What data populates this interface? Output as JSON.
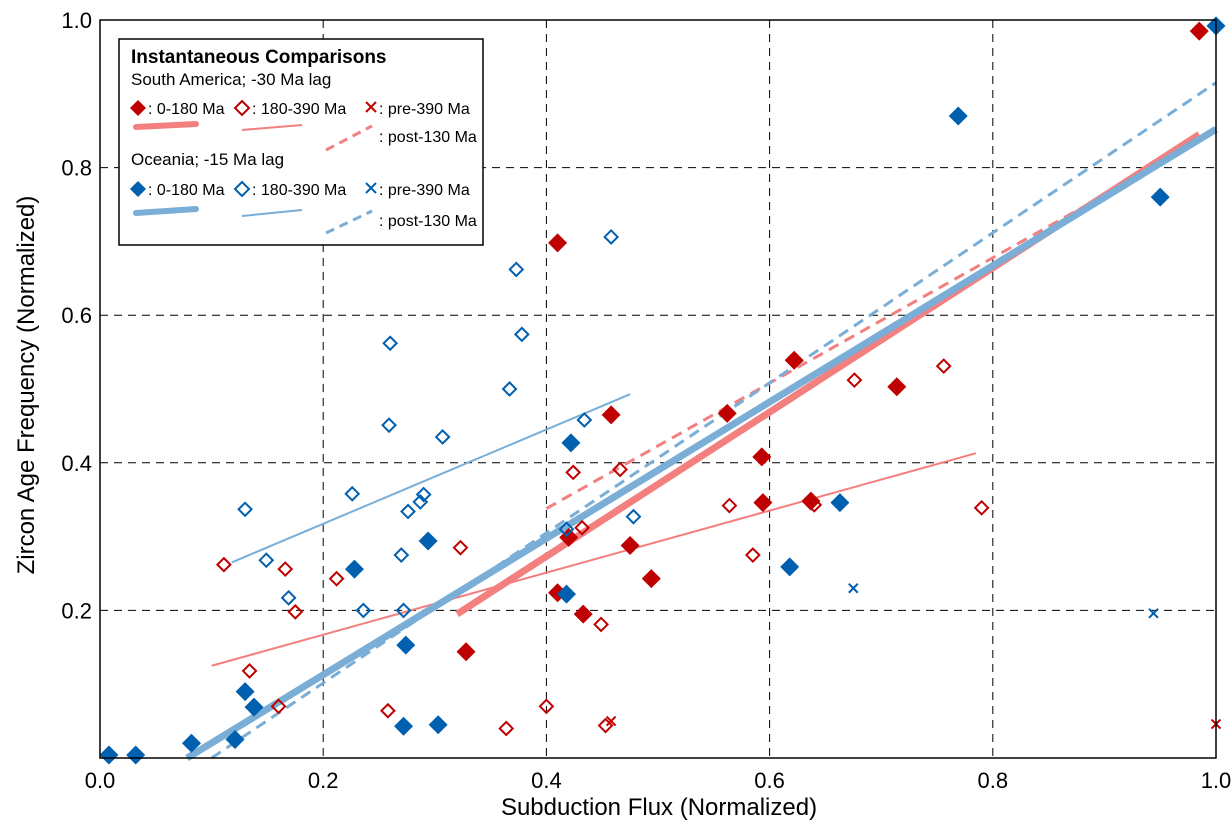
{
  "chart_data": {
    "type": "scatter",
    "xlabel": "Subduction Flux (Normalized)",
    "ylabel": "Zircon Age Frequency (Normalized)",
    "xlim": [
      0,
      1
    ],
    "ylim": [
      0,
      1
    ],
    "x_ticks": [
      "0.0",
      "0.2",
      "0.4",
      "0.6",
      "0.8",
      "1.0"
    ],
    "y_ticks": [
      "0.2",
      "0.4",
      "0.6",
      "0.8",
      "1.0"
    ],
    "grid": true,
    "legend_placement": "top-left",
    "colors": {
      "sa_marker": "#c00000",
      "sa_line": "#f47f7f",
      "oc_marker": "#0060b0",
      "oc_line": "#7aaed6"
    },
    "legend": {
      "title": "Instantaneous Comparisons",
      "groups": [
        {
          "name": "South America; -30 Ma lag",
          "entries": [
            ": 0-180 Ma",
            ": 180-390 Ma",
            ": pre-390 Ma",
            ": post-130 Ma"
          ]
        },
        {
          "name": "Oceania; -15 Ma lag",
          "entries": [
            ": 0-180 Ma",
            ": 180-390 Ma",
            ": pre-390 Ma",
            ": post-130 Ma"
          ]
        }
      ]
    },
    "series": [
      {
        "group": "South America",
        "label": "0-180 Ma",
        "marker": "filled-diamond",
        "x": [
          0.985,
          0.41,
          0.458,
          0.562,
          0.593,
          0.594,
          0.622,
          0.637,
          0.714,
          0.42,
          0.475,
          0.494,
          0.41,
          0.433,
          0.328
        ],
        "y": [
          0.985,
          0.698,
          0.465,
          0.467,
          0.408,
          0.346,
          0.539,
          0.348,
          0.503,
          0.299,
          0.288,
          0.243,
          0.224,
          0.195,
          0.144
        ]
      },
      {
        "group": "South America",
        "label": "180-390 Ma",
        "marker": "open-diamond",
        "x": [
          0.676,
          0.756,
          0.79,
          0.424,
          0.466,
          0.432,
          0.564,
          0.64,
          0.585,
          0.111,
          0.166,
          0.212,
          0.323,
          0.175,
          0.134,
          0.16,
          0.258,
          0.364,
          0.4,
          0.449,
          0.453
        ],
        "y": [
          0.512,
          0.531,
          0.339,
          0.387,
          0.391,
          0.312,
          0.342,
          0.343,
          0.275,
          0.262,
          0.256,
          0.243,
          0.285,
          0.198,
          0.118,
          0.07,
          0.064,
          0.04,
          0.07,
          0.181,
          0.044
        ]
      },
      {
        "group": "South America",
        "label": "pre-390 Ma",
        "marker": "x",
        "x": [
          0.458,
          1.0
        ],
        "y": [
          0.05,
          0.046
        ]
      },
      {
        "group": "Oceania",
        "label": "0-180 Ma",
        "marker": "filled-diamond",
        "x": [
          1.0,
          0.769,
          0.95,
          0.422,
          0.663,
          0.618,
          0.294,
          0.228,
          0.418,
          0.274,
          0.13,
          0.138,
          0.082,
          0.121,
          0.272,
          0.303,
          0.008,
          0.032
        ],
        "y": [
          0.992,
          0.87,
          0.76,
          0.427,
          0.346,
          0.259,
          0.294,
          0.256,
          0.222,
          0.153,
          0.09,
          0.069,
          0.02,
          0.025,
          0.043,
          0.045,
          0.004,
          0.004
        ]
      },
      {
        "group": "Oceania",
        "label": "180-390 Ma",
        "marker": "open-diamond",
        "x": [
          0.458,
          0.373,
          0.26,
          0.378,
          0.367,
          0.259,
          0.307,
          0.434,
          0.226,
          0.29,
          0.287,
          0.276,
          0.13,
          0.149,
          0.169,
          0.236,
          0.27,
          0.272,
          0.418,
          0.478
        ],
        "y": [
          0.706,
          0.662,
          0.562,
          0.574,
          0.5,
          0.451,
          0.435,
          0.458,
          0.358,
          0.357,
          0.347,
          0.334,
          0.337,
          0.268,
          0.217,
          0.2,
          0.275,
          0.2,
          0.31,
          0.327
        ]
      },
      {
        "group": "Oceania",
        "label": "pre-390 Ma",
        "marker": "x",
        "x": [
          0.675,
          0.944
        ],
        "y": [
          0.23,
          0.196
        ]
      }
    ],
    "lines": [
      {
        "group": "South America",
        "label": "0-180 Ma",
        "style": "thick",
        "x": [
          0.32,
          0.985
        ],
        "y": [
          0.195,
          0.845
        ]
      },
      {
        "group": "South America",
        "label": "180-390 Ma",
        "style": "thin",
        "x": [
          0.1,
          0.785
        ],
        "y": [
          0.125,
          0.413
        ]
      },
      {
        "group": "South America",
        "label": "post-130 Ma",
        "style": "dashed",
        "x": [
          0.4,
          0.985
        ],
        "y": [
          0.338,
          0.835
        ]
      },
      {
        "group": "Oceania",
        "label": "0-180 Ma",
        "style": "thick",
        "x": [
          0.078,
          1.0
        ],
        "y": [
          0.0,
          0.852
        ]
      },
      {
        "group": "Oceania",
        "label": "180-390 Ma",
        "style": "thin",
        "x": [
          0.118,
          0.475
        ],
        "y": [
          0.265,
          0.493
        ]
      },
      {
        "group": "Oceania",
        "label": "post-130 Ma",
        "style": "dashed",
        "x": [
          0.1,
          1.0
        ],
        "y": [
          0.0,
          0.915
        ]
      }
    ]
  }
}
